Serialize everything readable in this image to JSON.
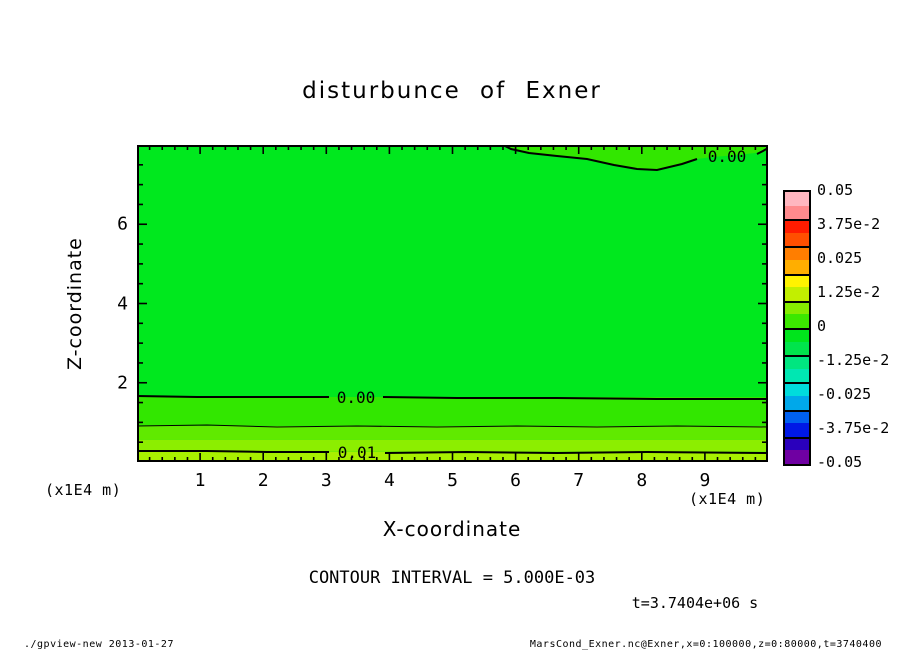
{
  "title": "disturbunce of Exner",
  "chart_data": {
    "type": "contour",
    "title": "disturbunce of Exner",
    "xlabel": "X-coordinate",
    "ylabel": "Z-coordinate",
    "x_unit_label": "(x1E4 m)",
    "y_unit_label": "(x1E4 m)",
    "xlim_x1e4_m": [
      0,
      10
    ],
    "ylim_x1e4_m": [
      0,
      8
    ],
    "x_ticks": [
      1,
      2,
      3,
      4,
      5,
      6,
      7,
      8,
      9
    ],
    "x_minor_step": 0.2,
    "y_ticks": [
      2,
      4,
      6
    ],
    "y_minor_step": 0.5,
    "contour_interval_text": "CONTOUR INTERVAL = 5.000E-03",
    "time_annotation": "t=3.7404e+06 s",
    "contours": {
      "top_zero_label": "0.00",
      "bottom_zero_label": "0.00",
      "bottom_001_label": "0.01",
      "description": "Field nearly uniform (slightly below 0) over most of domain; 0.00 contour dips from top edge near x=5.8e4 m; near-surface positive bands with 0.00, 0.005 and 0.01 contours at z≈1.6e4, 0.9e4 and 0.25e4 m"
    },
    "field": {
      "main_color": "#00e81e",
      "band_above_top_contour_color": "#32e700",
      "bottom_bands": [
        {
          "from_y_frac": 0.795,
          "color": "#32e700",
          "value_range": "0 to 0.005"
        },
        {
          "from_y_frac": 0.886,
          "color": "#60ea00",
          "value_range": "0.005 to 0.0075"
        },
        {
          "from_y_frac": 0.93,
          "color": "#8cee00",
          "value_range": "0.0075 to 0.01"
        },
        {
          "from_y_frac": 0.968,
          "color": "#a8f000",
          "value_range": "0.01 to 0.0125"
        }
      ]
    },
    "colorbar": {
      "range": [
        -0.05,
        0.05
      ],
      "tick_labels": [
        "0.05",
        "3.75e-2",
        "0.025",
        "1.25e-2",
        "0",
        "-1.25e-2",
        "-0.025",
        "-3.75e-2",
        "-0.05"
      ],
      "segment_colors": [
        "#ffb6bf",
        "#ff8a8d",
        "#ff1c00",
        "#ff4f00",
        "#ff7e00",
        "#ffae00",
        "#fff300",
        "#c2ef00",
        "#86ec00",
        "#3ce800",
        "#00e41c",
        "#00e44c",
        "#00e680",
        "#00e7b2",
        "#00dcdc",
        "#00a8ea",
        "#0060f0",
        "#0018e6",
        "#2a00bc",
        "#6f00a2"
      ]
    }
  },
  "footer": {
    "left": "./gpview-new  2013-01-27",
    "right": "MarsCond_Exner.nc@Exner,x=0:100000,z=0:80000,t=3740400"
  }
}
